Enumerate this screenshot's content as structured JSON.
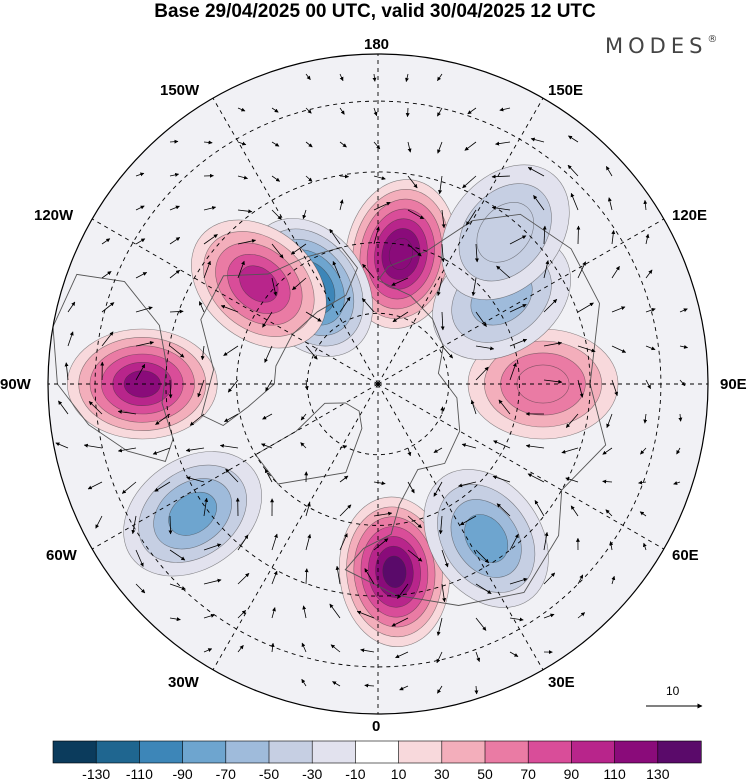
{
  "title": "Base 29/04/2025 00 UTC, valid 30/04/2025 12 UTC",
  "brand": "MODES",
  "brand_mark": "®",
  "longitude_labels": {
    "top": "180",
    "bottom": "0",
    "left": "90W",
    "right": "90E",
    "upper_left_1": "150W",
    "upper_left_2": "120W",
    "lower_left_1": "60W",
    "lower_left_2": "30W",
    "upper_right_1": "150E",
    "upper_right_2": "120E",
    "lower_right_1": "60E",
    "lower_right_2": "30E"
  },
  "vector_scale_label": "10",
  "colorbar": {
    "ticks": [
      "-130",
      "-110",
      "-90",
      "-70",
      "-50",
      "-30",
      "-10",
      "10",
      "30",
      "50",
      "70",
      "90",
      "110",
      "130"
    ],
    "colors": [
      "#0b3b5c",
      "#1f6690",
      "#3d86b8",
      "#6ea5cf",
      "#9fbbdb",
      "#c6cfe3",
      "#e2e2ee",
      "#ffffff",
      "#f8d9dc",
      "#f3aebb",
      "#ea7ba4",
      "#d94d99",
      "#b8258b",
      "#8a0b7a",
      "#5a0a6a"
    ]
  },
  "anomaly_centers": [
    {
      "lon": 170,
      "lat": 62,
      "value": 125
    },
    {
      "lon": -145,
      "lat": 65,
      "value": -115
    },
    {
      "lon": -130,
      "lat": 57,
      "value": 90
    },
    {
      "lon": -90,
      "lat": 40,
      "value": 120
    },
    {
      "lon": -55,
      "lat": 42,
      "value": -75
    },
    {
      "lon": 5,
      "lat": 50,
      "value": 130
    },
    {
      "lon": 35,
      "lat": 50,
      "value": -80
    },
    {
      "lon": 90,
      "lat": 55,
      "value": 65
    },
    {
      "lon": 125,
      "lat": 58,
      "value": -60
    },
    {
      "lon": 140,
      "lat": 48,
      "value": -45
    }
  ]
}
